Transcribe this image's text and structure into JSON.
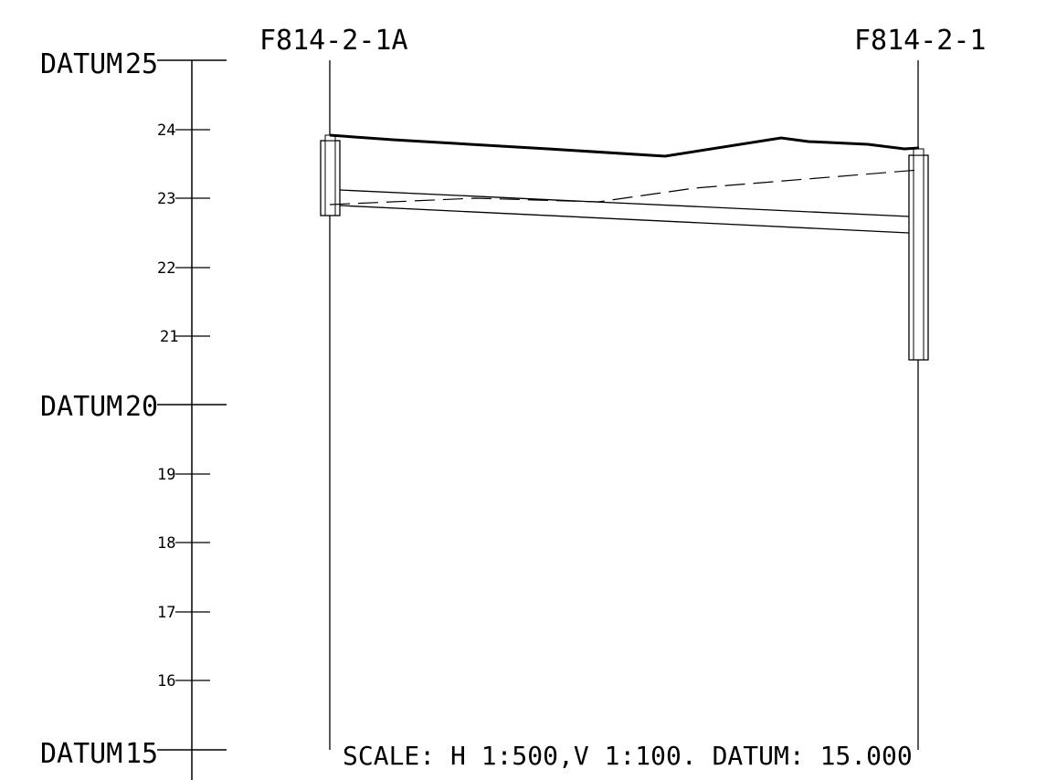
{
  "axis": {
    "datum_labels": [
      {
        "prefix": "DATUM",
        "value": "25"
      },
      {
        "prefix": "DATUM",
        "value": "20"
      },
      {
        "prefix": "DATUM",
        "value": "15"
      }
    ],
    "minor_ticks": [
      "24",
      "23",
      "22",
      "21",
      "19",
      "18",
      "17",
      "16"
    ]
  },
  "boreholes": [
    {
      "label": "F814-2-1A"
    },
    {
      "label": "F814-2-1"
    }
  ],
  "scale_note": "SCALE: H 1:500,V 1:100. DATUM: 15.000",
  "chart_data": {
    "type": "line",
    "y_axis": {
      "min": 15,
      "max": 25,
      "major_ticks": [
        15,
        20,
        25
      ],
      "minor_ticks": [
        16,
        17,
        18,
        19,
        21,
        22,
        23,
        24
      ]
    },
    "boreholes": [
      {
        "name": "F814-2-1A",
        "ground_level": 23.9,
        "bottom_level": 22.75
      },
      {
        "name": "F814-2-1",
        "ground_level": 23.7,
        "bottom_level": 20.7
      }
    ],
    "ground_profile_levels": [
      23.9,
      23.85,
      23.78,
      23.6,
      23.88,
      23.8,
      23.78,
      23.7
    ],
    "layer_top_levels": [
      23.1,
      22.72
    ],
    "layer_bottom_levels": [
      22.9,
      22.5
    ],
    "water_table_levels": [
      22.88,
      22.95,
      23.4
    ]
  }
}
